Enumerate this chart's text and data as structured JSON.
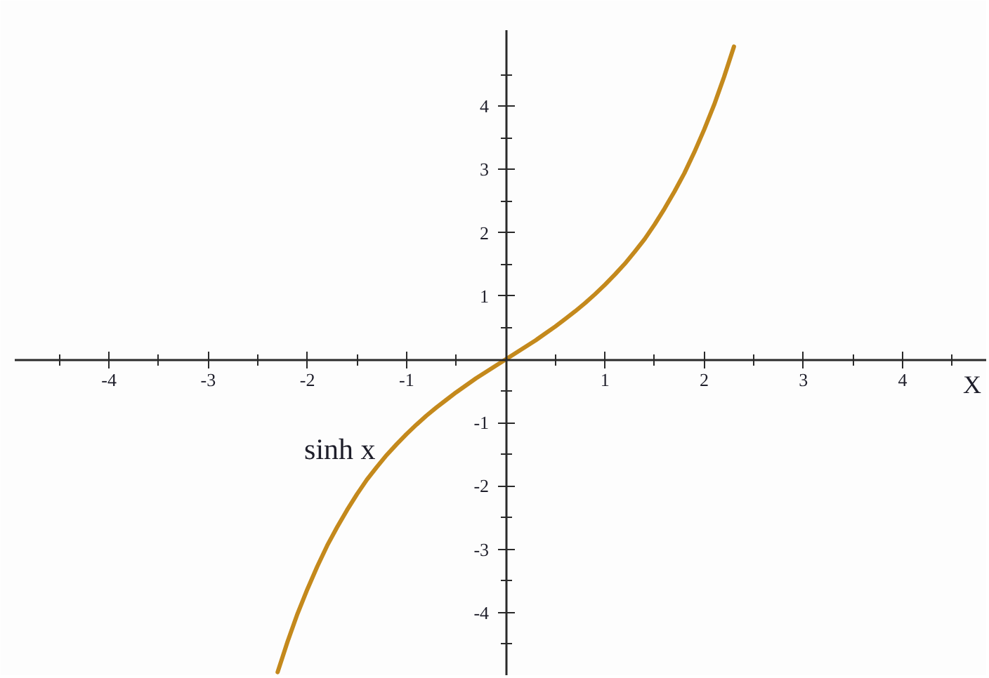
{
  "chart_data": {
    "type": "line",
    "xlabel": "X",
    "xlim": [
      -4.95,
      4.85
    ],
    "ylim": [
      -5.0,
      5.2
    ],
    "xticks": [
      {
        "value": -4.5,
        "label": null
      },
      -4,
      {
        "value": -3.5,
        "label": null
      },
      -3,
      {
        "value": -2.5,
        "label": null
      },
      -2,
      {
        "value": -1.5,
        "label": null
      },
      -1,
      {
        "value": -0.5,
        "label": null
      },
      {
        "value": 0.5,
        "label": null
      },
      1,
      {
        "value": 1.5,
        "label": null
      },
      2,
      {
        "value": 2.5,
        "label": null
      },
      3,
      {
        "value": 3.5,
        "label": null
      },
      4,
      {
        "value": 4.5,
        "label": null
      }
    ],
    "yticks": [
      {
        "value": -4.5,
        "label": null
      },
      -4,
      {
        "value": -3.5,
        "label": null
      },
      -3,
      {
        "value": -2.5,
        "label": null
      },
      -2,
      {
        "value": -1.5,
        "label": null
      },
      -1,
      {
        "value": -0.5,
        "label": null
      },
      {
        "value": 0.5,
        "label": null
      },
      1,
      {
        "value": 1.5,
        "label": null
      },
      2,
      {
        "value": 2.5,
        "label": null
      },
      3,
      {
        "value": 3.5,
        "label": null
      },
      4,
      {
        "value": 4.5,
        "label": null
      }
    ],
    "x": [
      -2.3,
      -2.2,
      -2.1,
      -2.0,
      -1.9,
      -1.8,
      -1.7,
      -1.6,
      -1.5,
      -1.4,
      -1.3,
      -1.2,
      -1.1,
      -1.0,
      -0.9,
      -0.8,
      -0.7,
      -0.6,
      -0.5,
      -0.4,
      -0.3,
      -0.2,
      -0.1,
      0.0,
      0.1,
      0.2,
      0.3,
      0.4,
      0.5,
      0.6,
      0.7,
      0.8,
      0.9,
      1.0,
      1.1,
      1.2,
      1.3,
      1.4,
      1.5,
      1.6,
      1.7,
      1.8,
      1.9,
      2.0,
      2.1,
      2.2,
      2.3
    ],
    "series": [
      {
        "name": "sinh x",
        "color": "#c4891c",
        "values": [
          -4.94,
          -4.46,
          -4.02,
          -3.63,
          -3.27,
          -2.94,
          -2.65,
          -2.38,
          -2.13,
          -1.9,
          -1.7,
          -1.51,
          -1.34,
          -1.18,
          -1.03,
          -0.89,
          -0.76,
          -0.64,
          -0.52,
          -0.41,
          -0.3,
          -0.2,
          -0.1,
          0.0,
          0.1,
          0.2,
          0.3,
          0.41,
          0.52,
          0.64,
          0.76,
          0.89,
          1.03,
          1.18,
          1.34,
          1.51,
          1.7,
          1.9,
          2.13,
          2.38,
          2.65,
          2.94,
          3.27,
          3.63,
          4.02,
          4.46,
          4.94
        ]
      }
    ]
  }
}
